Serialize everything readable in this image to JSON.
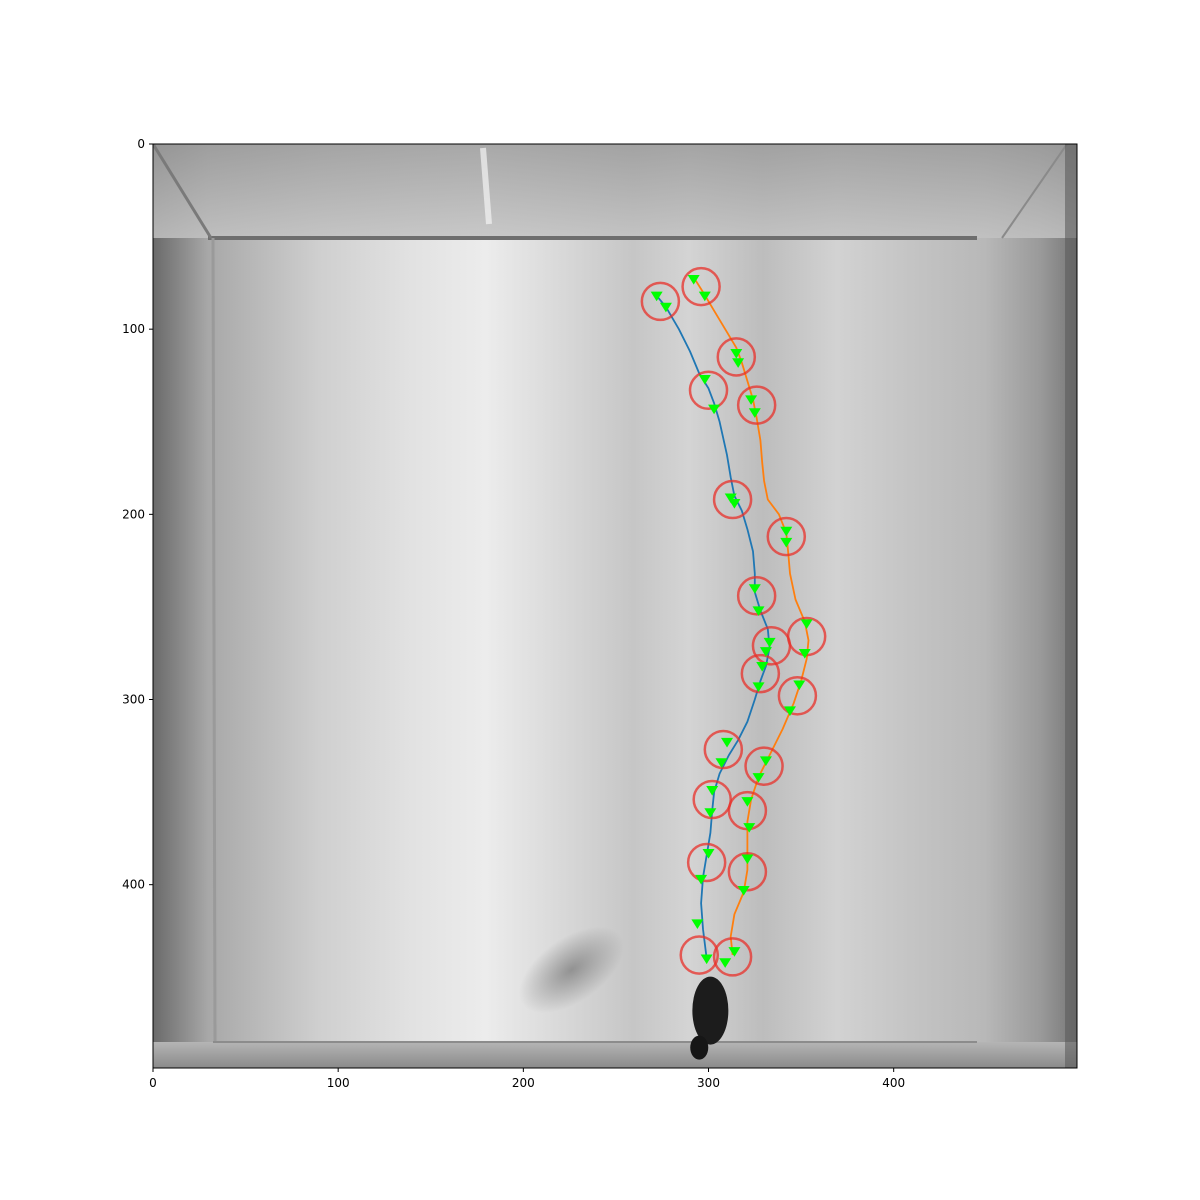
{
  "chart_data": {
    "type": "line",
    "title": "",
    "xlabel": "",
    "ylabel": "",
    "xlim": [
      0,
      499
    ],
    "ylim": [
      499,
      0
    ],
    "y_inverted": true,
    "grid": false,
    "legend": "none",
    "background": "grayscale overhead camera frame of an arena with a dark mouse near the bottom center",
    "xticks": [
      0,
      100,
      200,
      300,
      400
    ],
    "yticks": [
      0,
      100,
      200,
      300,
      400
    ],
    "series": [
      {
        "color": "#1f77b4",
        "x": [
          272,
          277,
          284,
          290,
          295,
          300,
          303,
          306,
          310,
          312,
          314,
          318,
          321,
          324,
          325,
          325,
          328,
          332,
          333,
          331,
          328,
          325,
          321,
          316,
          311,
          306,
          303,
          302,
          301,
          299,
          297,
          296,
          297,
          299
        ],
        "y": [
          82,
          88,
          100,
          112,
          124,
          132,
          140,
          150,
          168,
          180,
          190,
          198,
          208,
          220,
          232,
          242,
          252,
          262,
          272,
          282,
          290,
          300,
          312,
          322,
          330,
          340,
          350,
          360,
          372,
          384,
          396,
          410,
          424,
          440
        ]
      },
      {
        "color": "#ff7f0e",
        "x": [
          292,
          297,
          303,
          309,
          315,
          318,
          321,
          324,
          326,
          328,
          329,
          330,
          332,
          338,
          342,
          343,
          344,
          347,
          352,
          354,
          353,
          350,
          346,
          340,
          333,
          327,
          323,
          321,
          321,
          321,
          319,
          314,
          312,
          313
        ],
        "y": [
          72,
          80,
          90,
          100,
          110,
          118,
          128,
          138,
          148,
          160,
          172,
          182,
          192,
          200,
          210,
          220,
          232,
          246,
          258,
          268,
          278,
          290,
          302,
          316,
          330,
          342,
          354,
          366,
          378,
          392,
          404,
          416,
          428,
          438
        ]
      }
    ],
    "markers": {
      "color": "#00ff00",
      "shape": "triangle-down",
      "points": [
        [
          272,
          82
        ],
        [
          277,
          88
        ],
        [
          298,
          127
        ],
        [
          303,
          143
        ],
        [
          312,
          191
        ],
        [
          314,
          194
        ],
        [
          325,
          240
        ],
        [
          327,
          252
        ],
        [
          333,
          269
        ],
        [
          331,
          274
        ],
        [
          329,
          282
        ],
        [
          327,
          293
        ],
        [
          310,
          323
        ],
        [
          307,
          334
        ],
        [
          302,
          349
        ],
        [
          301,
          361
        ],
        [
          300,
          383
        ],
        [
          296,
          397
        ],
        [
          294,
          421
        ],
        [
          299,
          440
        ],
        [
          292,
          73
        ],
        [
          298,
          82
        ],
        [
          315,
          113
        ],
        [
          316,
          118
        ],
        [
          323,
          138
        ],
        [
          325,
          145
        ],
        [
          342,
          209
        ],
        [
          342,
          215
        ],
        [
          353,
          259
        ],
        [
          352,
          275
        ],
        [
          349,
          292
        ],
        [
          344,
          306
        ],
        [
          331,
          333
        ],
        [
          327,
          342
        ],
        [
          321,
          355
        ],
        [
          322,
          369
        ],
        [
          321,
          386
        ],
        [
          319,
          403
        ],
        [
          314,
          436
        ],
        [
          309,
          442
        ]
      ]
    },
    "circles": {
      "color": "#e8302a",
      "radius": 10,
      "centers": [
        [
          274,
          85
        ],
        [
          296,
          77
        ],
        [
          300,
          133
        ],
        [
          315,
          115
        ],
        [
          313,
          192
        ],
        [
          326,
          141
        ],
        [
          326,
          244
        ],
        [
          342,
          212
        ],
        [
          334,
          271
        ],
        [
          353,
          266
        ],
        [
          328,
          286
        ],
        [
          348,
          298
        ],
        [
          308,
          327
        ],
        [
          330,
          336
        ],
        [
          302,
          354
        ],
        [
          321,
          360
        ],
        [
          299,
          388
        ],
        [
          321,
          393
        ],
        [
          295,
          438
        ],
        [
          313,
          439
        ]
      ]
    }
  }
}
